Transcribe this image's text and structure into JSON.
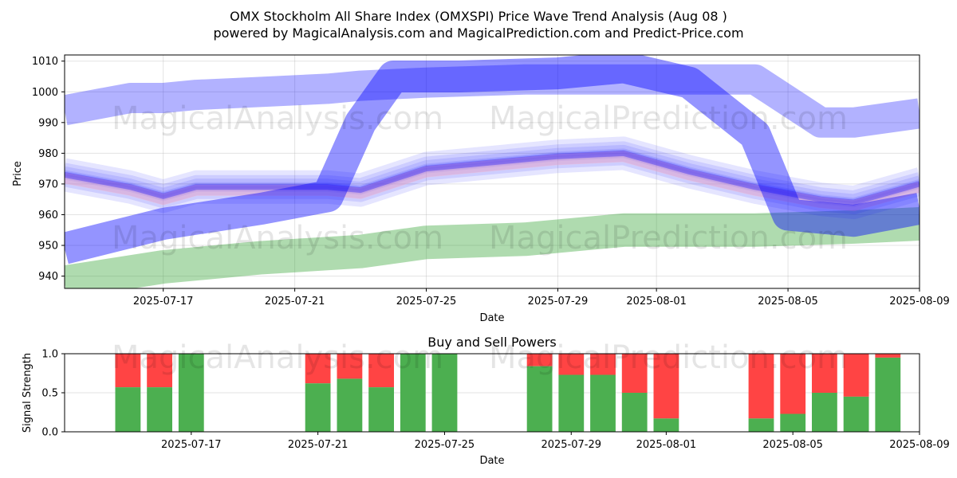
{
  "title_line1": "OMX Stockholm All Share Index (OMXSPI) Price Wave Trend Analysis (Aug 08 )",
  "title_line2": "powered by MagicalAnalysis.com and MagicalPrediction.com and Predict-Price.com",
  "watermarks": [
    "MagicalAnalysis.com",
    "MagicalPrediction.com"
  ],
  "colors": {
    "wave_blue": "#0000ff",
    "wave_pink": "#ffb6c1",
    "band_green": "#2ca02c",
    "buy": "#4caf50",
    "sell": "#ff4444"
  },
  "chart_data": [
    {
      "type": "area",
      "title": "",
      "xlabel": "Date",
      "ylabel": "Price",
      "xlim": [
        "2025-07-14",
        "2025-08-09"
      ],
      "ylim": [
        936,
        1012
      ],
      "x_ticks": [
        "2025-07-17",
        "2025-07-21",
        "2025-07-25",
        "2025-07-29",
        "2025-08-01",
        "2025-08-05",
        "2025-08-09"
      ],
      "y_ticks": [
        940,
        950,
        960,
        970,
        980,
        990,
        1000,
        1010
      ],
      "grid": true,
      "series": [
        {
          "style": "upper_band",
          "points": [
            [
              "2025-07-14",
              994
            ],
            [
              "2025-07-15",
              996
            ],
            [
              "2025-07-16",
              998
            ],
            [
              "2025-07-17",
              998
            ],
            [
              "2025-07-18",
              999
            ],
            [
              "2025-07-20",
              1000
            ],
            [
              "2025-07-22",
              1001
            ],
            [
              "2025-07-23",
              1002
            ],
            [
              "2025-07-25",
              1003
            ],
            [
              "2025-07-28",
              1004
            ],
            [
              "2025-07-30",
              1004
            ],
            [
              "2025-08-01",
              1004
            ],
            [
              "2025-08-04",
              1004
            ],
            [
              "2025-08-06",
              990
            ],
            [
              "2025-08-07",
              990
            ],
            [
              "2025-08-09",
              993
            ]
          ]
        },
        {
          "style": "main_wave",
          "points": [
            [
              "2025-07-14",
              949
            ],
            [
              "2025-07-17",
              957
            ],
            [
              "2025-07-20",
              962
            ],
            [
              "2025-07-22",
              966
            ],
            [
              "2025-07-23",
              990
            ],
            [
              "2025-07-24",
              1005
            ],
            [
              "2025-07-26",
              1005
            ],
            [
              "2025-07-29",
              1006
            ],
            [
              "2025-07-31",
              1008
            ],
            [
              "2025-08-02",
              1003
            ],
            [
              "2025-08-04",
              986
            ],
            [
              "2025-08-05",
              960
            ],
            [
              "2025-08-07",
              958
            ],
            [
              "2025-08-09",
              962
            ]
          ]
        },
        {
          "style": "lower_band",
          "points": [
            [
              "2025-07-14",
              938
            ],
            [
              "2025-07-17",
              943
            ],
            [
              "2025-07-20",
              946
            ],
            [
              "2025-07-23",
              948
            ],
            [
              "2025-07-25",
              951
            ],
            [
              "2025-07-28",
              952
            ],
            [
              "2025-07-31",
              955
            ],
            [
              "2025-08-02",
              955
            ],
            [
              "2025-08-04",
              955
            ],
            [
              "2025-08-07",
              956
            ],
            [
              "2025-08-09",
              957
            ]
          ]
        },
        {
          "style": "wave_cluster",
          "points": [
            [
              "2025-07-14",
              973
            ],
            [
              "2025-07-15",
              971
            ],
            [
              "2025-07-16",
              969
            ],
            [
              "2025-07-17",
              966
            ],
            [
              "2025-07-18",
              969
            ],
            [
              "2025-07-20",
              969
            ],
            [
              "2025-07-22",
              969
            ],
            [
              "2025-07-23",
              968
            ],
            [
              "2025-07-25",
              975
            ],
            [
              "2025-07-27",
              977
            ],
            [
              "2025-07-29",
              979
            ],
            [
              "2025-07-31",
              980
            ],
            [
              "2025-08-02",
              974
            ],
            [
              "2025-08-04",
              969
            ],
            [
              "2025-08-06",
              965
            ],
            [
              "2025-08-07",
              964
            ],
            [
              "2025-08-08",
              967
            ],
            [
              "2025-08-09",
              970
            ]
          ]
        }
      ]
    },
    {
      "type": "bar",
      "title": "Buy and Sell Powers",
      "xlabel": "Date",
      "ylabel": "Signal Strength",
      "xlim": [
        "2025-07-13",
        "2025-08-09"
      ],
      "ylim": [
        0,
        1
      ],
      "x_ticks": [
        "2025-07-17",
        "2025-07-21",
        "2025-07-25",
        "2025-07-29",
        "2025-08-01",
        "2025-08-05",
        "2025-08-09"
      ],
      "y_ticks": [
        0.0,
        0.5,
        1.0
      ],
      "grid": true,
      "bars": [
        {
          "date": "2025-07-15",
          "buy": 0.57
        },
        {
          "date": "2025-07-16",
          "buy": 0.57
        },
        {
          "date": "2025-07-17",
          "buy": 1.0
        },
        {
          "date": "2025-07-21",
          "buy": 0.62
        },
        {
          "date": "2025-07-22",
          "buy": 0.68
        },
        {
          "date": "2025-07-23",
          "buy": 0.57
        },
        {
          "date": "2025-07-24",
          "buy": 1.0
        },
        {
          "date": "2025-07-25",
          "buy": 1.0
        },
        {
          "date": "2025-07-28",
          "buy": 0.84
        },
        {
          "date": "2025-07-29",
          "buy": 0.73
        },
        {
          "date": "2025-07-30",
          "buy": 0.73
        },
        {
          "date": "2025-07-31",
          "buy": 0.5
        },
        {
          "date": "2025-08-01",
          "buy": 0.17
        },
        {
          "date": "2025-08-04",
          "buy": 0.17
        },
        {
          "date": "2025-08-05",
          "buy": 0.23
        },
        {
          "date": "2025-08-06",
          "buy": 0.5
        },
        {
          "date": "2025-08-07",
          "buy": 0.45
        },
        {
          "date": "2025-08-08",
          "buy": 0.95
        }
      ]
    }
  ]
}
